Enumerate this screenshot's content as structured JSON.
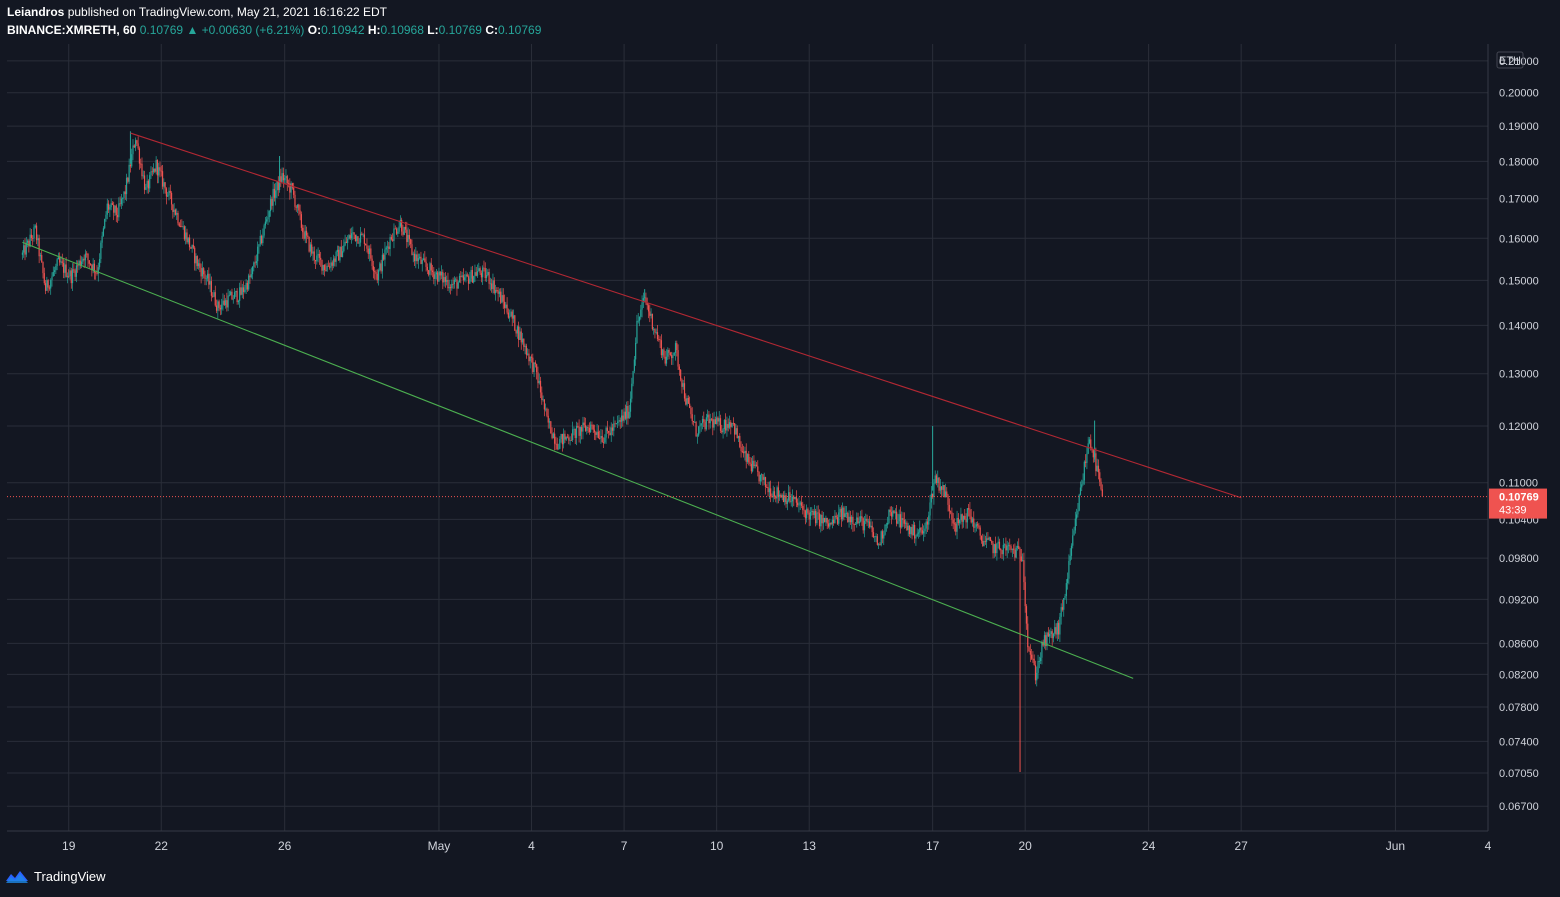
{
  "header": {
    "author": "Leiandros",
    "published_text": "published on TradingView.com, May 21, 2021 16:16:22 EDT",
    "symbol": "BINANCE:XMRETH, 60",
    "last": "0.10769",
    "change_arrow": "▲",
    "change": "+0.00630 (+6.21%)",
    "o_label": "O:",
    "o": "0.10942",
    "h_label": "H:",
    "h": "0.10968",
    "l_label": "L:",
    "l": "0.10769",
    "c_label": "C:",
    "c": "0.10769"
  },
  "footer": {
    "brand": "TradingView",
    "logo_icon": "tradingview-logo-icon"
  },
  "colors": {
    "background": "#131722",
    "grid": "#2a2e39",
    "up": "#26a69a",
    "down": "#ef5350",
    "resistance": "#b22833",
    "support": "#4caf50",
    "price_tag": "#ef5350"
  },
  "chart_data": {
    "type": "candlestick",
    "symbol": "BINANCE:XMRETH",
    "interval": "60",
    "currency": "ETH",
    "y_scale": "log",
    "ylim": [
      0.0645,
      0.2155
    ],
    "xlim": [
      "2021-04-17",
      "2021-06-04"
    ],
    "grid": true,
    "y_ticks": [
      "0.21000",
      "0.20000",
      "0.19000",
      "0.18000",
      "0.17000",
      "0.16000",
      "0.15000",
      "0.14000",
      "0.13000",
      "0.12000",
      "0.11000",
      "0.10400",
      "0.09800",
      "0.09200",
      "0.08600",
      "0.08200",
      "0.07800",
      "0.07400",
      "0.07050",
      "0.06700"
    ],
    "x_ticks": [
      {
        "date": "2021-04-19",
        "label": "19"
      },
      {
        "date": "2021-04-22",
        "label": "22"
      },
      {
        "date": "2021-04-26",
        "label": "26"
      },
      {
        "date": "2021-05-01",
        "label": "May"
      },
      {
        "date": "2021-05-04",
        "label": "4"
      },
      {
        "date": "2021-05-07",
        "label": "7"
      },
      {
        "date": "2021-05-10",
        "label": "10"
      },
      {
        "date": "2021-05-13",
        "label": "13"
      },
      {
        "date": "2021-05-17",
        "label": "17"
      },
      {
        "date": "2021-05-20",
        "label": "20"
      },
      {
        "date": "2021-05-24",
        "label": "24"
      },
      {
        "date": "2021-05-27",
        "label": "27"
      },
      {
        "date": "2021-06-01",
        "label": "Jun"
      },
      {
        "date": "2021-06-04",
        "label": "4"
      }
    ],
    "price_path": [
      [
        "2021-04-17 12:00",
        0.156
      ],
      [
        "2021-04-17 22:00",
        0.162
      ],
      [
        "2021-04-18 06:00",
        0.148
      ],
      [
        "2021-04-18 16:00",
        0.154
      ],
      [
        "2021-04-19 02:00",
        0.151
      ],
      [
        "2021-04-19 12:00",
        0.156
      ],
      [
        "2021-04-19 22:00",
        0.152
      ],
      [
        "2021-04-20 06:00",
        0.168
      ],
      [
        "2021-04-20 14:00",
        0.166
      ],
      [
        "2021-04-20 20:00",
        0.172
      ],
      [
        "2021-04-21 04:00",
        0.187
      ],
      [
        "2021-04-21 12:00",
        0.172
      ],
      [
        "2021-04-21 20:00",
        0.179
      ],
      [
        "2021-04-22 04:00",
        0.172
      ],
      [
        "2021-04-22 12:00",
        0.166
      ],
      [
        "2021-04-22 20:00",
        0.16
      ],
      [
        "2021-04-23 04:00",
        0.154
      ],
      [
        "2021-04-23 12:00",
        0.15
      ],
      [
        "2021-04-23 20:00",
        0.144
      ],
      [
        "2021-04-24 06:00",
        0.146
      ],
      [
        "2021-04-24 14:00",
        0.147
      ],
      [
        "2021-04-24 22:00",
        0.151
      ],
      [
        "2021-04-25 06:00",
        0.16
      ],
      [
        "2021-04-25 14:00",
        0.17
      ],
      [
        "2021-04-25 22:00",
        0.176
      ],
      [
        "2021-04-26 06:00",
        0.172
      ],
      [
        "2021-04-26 14:00",
        0.162
      ],
      [
        "2021-04-26 22:00",
        0.156
      ],
      [
        "2021-04-27 08:00",
        0.153
      ],
      [
        "2021-04-27 18:00",
        0.156
      ],
      [
        "2021-04-28 04:00",
        0.161
      ],
      [
        "2021-04-28 14:00",
        0.16
      ],
      [
        "2021-04-29 00:00",
        0.151
      ],
      [
        "2021-04-29 10:00",
        0.16
      ],
      [
        "2021-04-29 18:00",
        0.164
      ],
      [
        "2021-04-30 04:00",
        0.156
      ],
      [
        "2021-04-30 14:00",
        0.153
      ],
      [
        "2021-05-01 00:00",
        0.151
      ],
      [
        "2021-05-01 10:00",
        0.149
      ],
      [
        "2021-05-01 20:00",
        0.15
      ],
      [
        "2021-05-02 06:00",
        0.152
      ],
      [
        "2021-05-02 14:00",
        0.151
      ],
      [
        "2021-05-02 22:00",
        0.147
      ],
      [
        "2021-05-03 08:00",
        0.142
      ],
      [
        "2021-05-03 18:00",
        0.136
      ],
      [
        "2021-05-04 04:00",
        0.13
      ],
      [
        "2021-05-04 12:00",
        0.121
      ],
      [
        "2021-05-04 20:00",
        0.117
      ],
      [
        "2021-05-05 04:00",
        0.118
      ],
      [
        "2021-05-05 12:00",
        0.119
      ],
      [
        "2021-05-05 22:00",
        0.12
      ],
      [
        "2021-05-06 08:00",
        0.118
      ],
      [
        "2021-05-06 18:00",
        0.12
      ],
      [
        "2021-05-07 04:00",
        0.123
      ],
      [
        "2021-05-07 10:00",
        0.14
      ],
      [
        "2021-05-07 16:00",
        0.146
      ],
      [
        "2021-05-08 00:00",
        0.139
      ],
      [
        "2021-05-08 08:00",
        0.133
      ],
      [
        "2021-05-08 16:00",
        0.135
      ],
      [
        "2021-05-09 00:00",
        0.125
      ],
      [
        "2021-05-09 08:00",
        0.119
      ],
      [
        "2021-05-09 18:00",
        0.121
      ],
      [
        "2021-05-10 04:00",
        0.12
      ],
      [
        "2021-05-10 12:00",
        0.121
      ],
      [
        "2021-05-10 20:00",
        0.115
      ],
      [
        "2021-05-11 06:00",
        0.112
      ],
      [
        "2021-05-11 16:00",
        0.109
      ],
      [
        "2021-05-12 02:00",
        0.108
      ],
      [
        "2021-05-12 12:00",
        0.107
      ],
      [
        "2021-05-12 22:00",
        0.105
      ],
      [
        "2021-05-13 08:00",
        0.104
      ],
      [
        "2021-05-13 16:00",
        0.103
      ],
      [
        "2021-05-14 02:00",
        0.105
      ],
      [
        "2021-05-14 12:00",
        0.104
      ],
      [
        "2021-05-14 22:00",
        0.103
      ],
      [
        "2021-05-15 06:00",
        0.1
      ],
      [
        "2021-05-15 14:00",
        0.105
      ],
      [
        "2021-05-15 22:00",
        0.104
      ],
      [
        "2021-05-16 08:00",
        0.102
      ],
      [
        "2021-05-16 18:00",
        0.102
      ],
      [
        "2021-05-17 02:00",
        0.111
      ],
      [
        "2021-05-17 10:00",
        0.108
      ],
      [
        "2021-05-17 18:00",
        0.103
      ],
      [
        "2021-05-18 04:00",
        0.105
      ],
      [
        "2021-05-18 14:00",
        0.101
      ],
      [
        "2021-05-19 00:00",
        0.0995
      ],
      [
        "2021-05-19 10:00",
        0.0995
      ],
      [
        "2021-05-19 16:00",
        0.099
      ],
      [
        "2021-05-19 22:00",
        0.0985
      ],
      [
        "2021-05-20 02:00",
        0.086
      ],
      [
        "2021-05-20 08:00",
        0.082
      ],
      [
        "2021-05-20 14:00",
        0.086
      ],
      [
        "2021-05-20 20:00",
        0.087
      ],
      [
        "2021-05-21 02:00",
        0.088
      ],
      [
        "2021-05-21 08:00",
        0.094
      ],
      [
        "2021-05-21 14:00",
        0.102
      ],
      [
        "2021-05-21 20:00",
        0.11
      ],
      [
        "2021-05-22 02:00",
        0.118
      ],
      [
        "2021-05-22 08:00",
        0.112
      ],
      [
        "2021-05-22 12:00",
        0.10769
      ]
    ],
    "notable_wicks": [
      {
        "time": "2021-04-21 00:00",
        "value": 0.1885
      },
      {
        "time": "2021-04-25 20:00",
        "value": 0.1815
      },
      {
        "time": "2021-05-07 16:00",
        "value": 0.148
      },
      {
        "time": "2021-05-17 00:00",
        "value": 0.12
      },
      {
        "time": "2021-05-19 20:00",
        "value": 0.0706
      },
      {
        "time": "2021-05-22 06:00",
        "value": 0.121
      }
    ],
    "trendlines": [
      {
        "name": "resistance",
        "color": "#b22833",
        "start": [
          "2021-04-21 00:00",
          0.188
        ],
        "end": [
          "2021-05-27 00:00",
          0.1075
        ]
      },
      {
        "name": "support",
        "color": "#4caf50",
        "start": [
          "2021-04-17 12:00",
          0.159
        ],
        "end": [
          "2021-05-23 12:00",
          0.0815
        ]
      }
    ],
    "last_price": {
      "value": "0.10769",
      "countdown": "43:39"
    }
  }
}
